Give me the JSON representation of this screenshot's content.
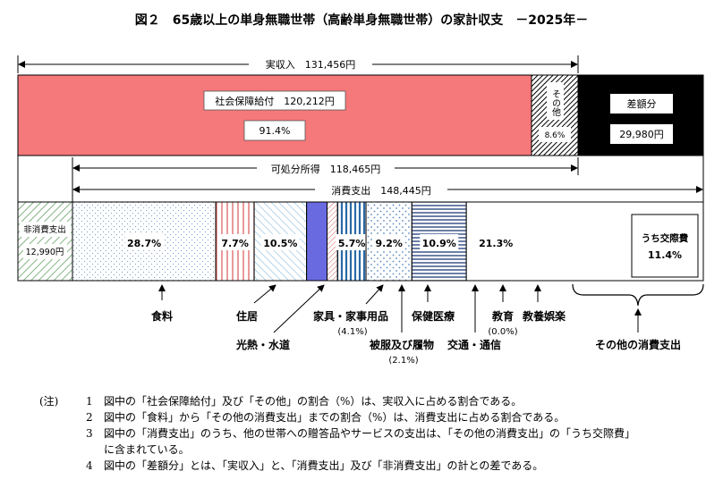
{
  "chart_data": {
    "type": "bar",
    "title": "図２　65歳以上の単身無職世帯（高齢単身無職世帯）の家計収支　－2025年－",
    "income": {
      "label": "実収入　131,456円",
      "total": 131456,
      "segments": [
        {
          "key": "social_security",
          "name": "社会保障給付　120,212円",
          "value": 120212,
          "pct_label": "91.4%"
        },
        {
          "key": "other",
          "name": "その他",
          "value": 11244,
          "pct_label": "8.6%"
        }
      ],
      "deficit": {
        "name": "差額分",
        "value_label": "29,980円",
        "value": 29980
      }
    },
    "disposable": {
      "label": "可処分所得　118,465円",
      "value": 118465
    },
    "consumption": {
      "label": "消費支出　148,445円",
      "value": 148445
    },
    "non_consumption": {
      "name": "非消費支出",
      "value_label": "12,990円",
      "value": 12990
    },
    "expenditure": [
      {
        "key": "food",
        "name": "食料",
        "value": 28.7,
        "pct_label": "28.7%"
      },
      {
        "key": "housing",
        "name": "住居",
        "value": 7.7,
        "pct_label": "7.7%"
      },
      {
        "key": "utilities",
        "name": "光熱・水道",
        "value": 10.5,
        "pct_label": "10.5%"
      },
      {
        "key": "furniture",
        "name": "家具・家事用品",
        "value": 4.1,
        "pct_label": "(4.1%)"
      },
      {
        "key": "clothing",
        "name": "被服及び履物",
        "value": 2.1,
        "pct_label": "(2.1%)"
      },
      {
        "key": "medical",
        "name": "保健医療",
        "value": 5.7,
        "pct_label": "5.7%"
      },
      {
        "key": "transport",
        "name": "交通・通信",
        "value": 9.2,
        "pct_label": "9.2%"
      },
      {
        "key": "education",
        "name": "教育",
        "value": 0.0,
        "pct_label": "(0.0%)"
      },
      {
        "key": "recreation",
        "name": "教養娯楽",
        "value": 10.9,
        "pct_label": "10.9%"
      },
      {
        "key": "other_consumption",
        "name": "その他の消費支出",
        "value": 21.3,
        "pct_label": "21.3%",
        "sub": {
          "name": "うち交際費",
          "value": 11.4,
          "pct_label": "11.4%"
        }
      }
    ]
  },
  "notes": {
    "prefix": "(注)",
    "items": [
      {
        "num": "1",
        "text": "図中の「社会保障給付」及び「その他」の割合（%）は、実収入に占める割合である。"
      },
      {
        "num": "2",
        "text": "図中の「食料」から「その他の消費支出」までの割合（%）は、消費支出に占める割合である。"
      },
      {
        "num": "3",
        "text": "図中の「消費支出」のうち、他の世帯への贈答品やサービスの支出は、「その他の消費支出」の「うち交際費」",
        "cont": "に含まれている。"
      },
      {
        "num": "4",
        "text": "図中の「差額分」とは、「実収入」と、「消費支出」及び「非消費支出」の計との差である。"
      }
    ]
  }
}
